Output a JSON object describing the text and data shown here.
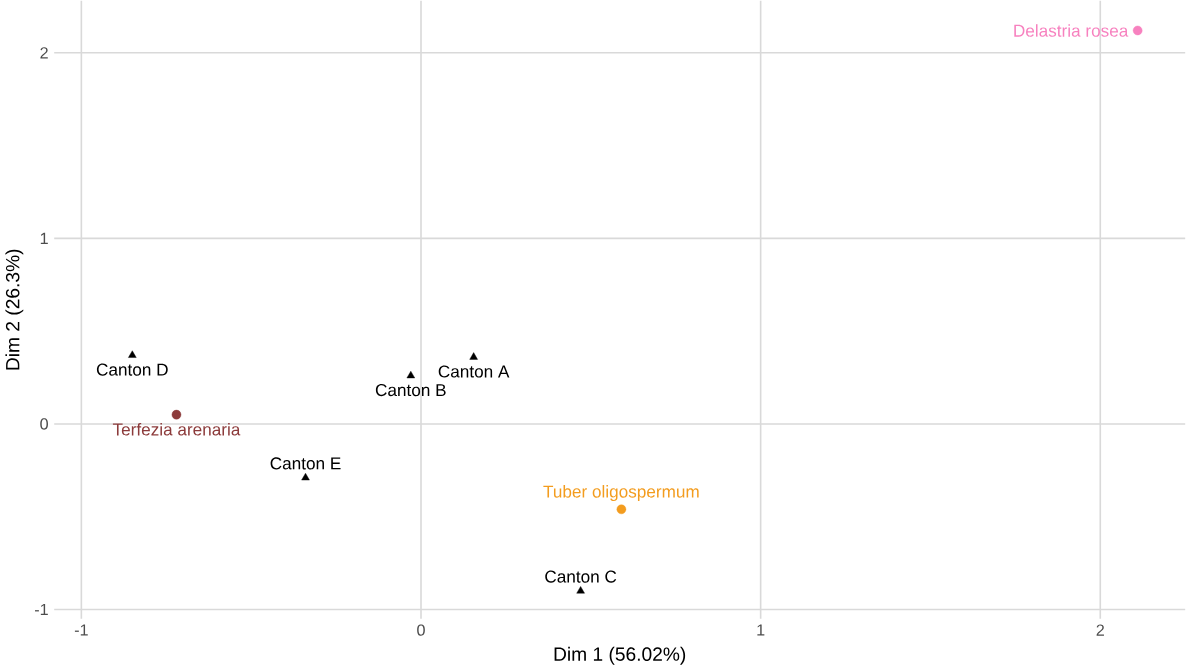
{
  "chart_data": {
    "type": "scatter",
    "xlabel": "Dim 1 (56.02%)",
    "ylabel": "Dim 2 (26.3%)",
    "xlim": [
      -1.08,
      2.25
    ],
    "ylim": [
      -1.05,
      2.28
    ],
    "xticks": [
      -1,
      0,
      1,
      2
    ],
    "yticks": [
      -1,
      0,
      1,
      2
    ],
    "grid": true,
    "series": [
      {
        "name": "Canton A",
        "color": "#000000",
        "marker": "triangle",
        "x": [
          0.155
        ],
        "values": [
          0.36
        ]
      },
      {
        "name": "Canton B",
        "color": "#000000",
        "marker": "triangle",
        "x": [
          -0.03
        ],
        "values": [
          0.26
        ]
      },
      {
        "name": "Canton C",
        "color": "#000000",
        "marker": "triangle",
        "x": [
          0.47
        ],
        "values": [
          -0.9
        ]
      },
      {
        "name": "Canton D",
        "color": "#000000",
        "marker": "triangle",
        "x": [
          -0.85
        ],
        "values": [
          0.37
        ]
      },
      {
        "name": "Canton E",
        "color": "#000000",
        "marker": "triangle",
        "x": [
          -0.34
        ],
        "values": [
          -0.29
        ]
      },
      {
        "name": "Delastria rosea",
        "color": "#f781bf",
        "marker": "circle",
        "x": [
          2.11
        ],
        "values": [
          2.12
        ]
      },
      {
        "name": "Terfezia arenaria",
        "color": "#8c3b3b",
        "marker": "circle",
        "x": [
          -0.72
        ],
        "values": [
          0.05
        ]
      },
      {
        "name": "Tuber oligospermum",
        "color": "#f39c1e",
        "marker": "circle",
        "x": [
          0.59
        ],
        "values": [
          -0.46
        ]
      }
    ]
  }
}
